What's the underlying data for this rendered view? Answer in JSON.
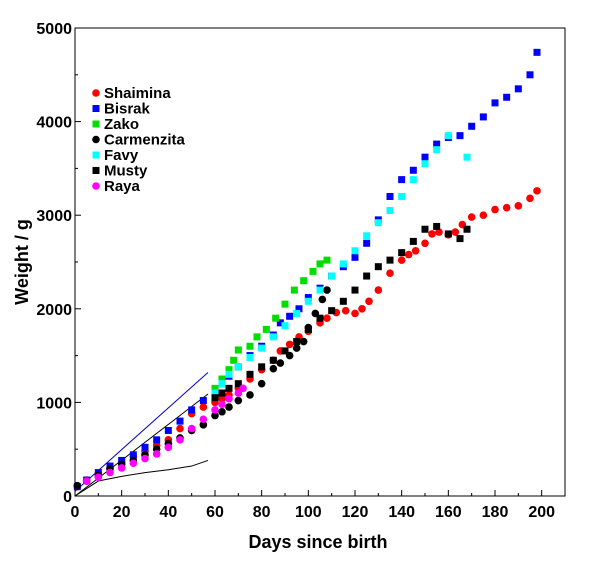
{
  "chart_data": {
    "type": "scatter",
    "title": "",
    "xlabel": "Days since birth",
    "ylabel": "Weight / g",
    "xlim": [
      0,
      210
    ],
    "ylim": [
      0,
      5000
    ],
    "x_ticks": [
      0,
      20,
      40,
      60,
      80,
      100,
      120,
      140,
      160,
      180,
      200
    ],
    "y_ticks": [
      0,
      1000,
      2000,
      3000,
      4000,
      5000
    ],
    "legend_position": "top-left",
    "grid": false,
    "series": [
      {
        "name": "Shaimina",
        "color": "#ff0000",
        "marker": "circle",
        "points": [
          [
            1,
            100
          ],
          [
            5,
            170
          ],
          [
            10,
            240
          ],
          [
            15,
            300
          ],
          [
            20,
            360
          ],
          [
            25,
            420
          ],
          [
            30,
            480
          ],
          [
            35,
            540
          ],
          [
            40,
            600
          ],
          [
            45,
            720
          ],
          [
            50,
            880
          ],
          [
            55,
            950
          ],
          [
            60,
            1000
          ],
          [
            63,
            1040
          ],
          [
            66,
            1080
          ],
          [
            70,
            1150
          ],
          [
            75,
            1250
          ],
          [
            80,
            1350
          ],
          [
            85,
            1450
          ],
          [
            88,
            1550
          ],
          [
            92,
            1620
          ],
          [
            96,
            1700
          ],
          [
            100,
            1760
          ],
          [
            105,
            1850
          ],
          [
            108,
            1900
          ],
          [
            112,
            1960
          ],
          [
            116,
            1980
          ],
          [
            120,
            1950
          ],
          [
            123,
            2000
          ],
          [
            126,
            2080
          ],
          [
            130,
            2200
          ],
          [
            135,
            2380
          ],
          [
            140,
            2520
          ],
          [
            143,
            2580
          ],
          [
            146,
            2620
          ],
          [
            150,
            2700
          ],
          [
            153,
            2800
          ],
          [
            156,
            2820
          ],
          [
            160,
            2790
          ],
          [
            163,
            2820
          ],
          [
            166,
            2900
          ],
          [
            170,
            2980
          ],
          [
            175,
            3000
          ],
          [
            180,
            3060
          ],
          [
            185,
            3080
          ],
          [
            190,
            3100
          ],
          [
            195,
            3180
          ],
          [
            198,
            3260
          ]
        ]
      },
      {
        "name": "Bisrak",
        "color": "#0000ff",
        "marker": "square",
        "points": [
          [
            1,
            100
          ],
          [
            5,
            170
          ],
          [
            10,
            250
          ],
          [
            15,
            320
          ],
          [
            20,
            380
          ],
          [
            25,
            440
          ],
          [
            30,
            520
          ],
          [
            35,
            600
          ],
          [
            40,
            700
          ],
          [
            45,
            800
          ],
          [
            50,
            920
          ],
          [
            55,
            1020
          ],
          [
            60,
            1120
          ],
          [
            63,
            1200
          ],
          [
            66,
            1280
          ],
          [
            70,
            1380
          ],
          [
            75,
            1500
          ],
          [
            80,
            1600
          ],
          [
            85,
            1720
          ],
          [
            88,
            1850
          ],
          [
            92,
            1920
          ],
          [
            96,
            2000
          ],
          [
            100,
            2120
          ],
          [
            105,
            2220
          ],
          [
            110,
            2350
          ],
          [
            115,
            2450
          ],
          [
            120,
            2550
          ],
          [
            125,
            2700
          ],
          [
            130,
            2950
          ],
          [
            135,
            3200
          ],
          [
            140,
            3380
          ],
          [
            145,
            3480
          ],
          [
            150,
            3620
          ],
          [
            155,
            3760
          ],
          [
            160,
            3830
          ],
          [
            165,
            3850
          ],
          [
            170,
            3950
          ],
          [
            175,
            4050
          ],
          [
            180,
            4200
          ],
          [
            185,
            4260
          ],
          [
            190,
            4350
          ],
          [
            195,
            4500
          ],
          [
            198,
            4740
          ]
        ]
      },
      {
        "name": "Zako",
        "color": "#00dd00",
        "marker": "square",
        "points": [
          [
            60,
            1150
          ],
          [
            63,
            1250
          ],
          [
            66,
            1350
          ],
          [
            68,
            1450
          ],
          [
            70,
            1560
          ],
          [
            75,
            1600
          ],
          [
            78,
            1700
          ],
          [
            82,
            1780
          ],
          [
            86,
            1900
          ],
          [
            90,
            2050
          ],
          [
            94,
            2200
          ],
          [
            98,
            2300
          ],
          [
            102,
            2400
          ],
          [
            105,
            2480
          ],
          [
            108,
            2520
          ]
        ]
      },
      {
        "name": "Carmenzita",
        "color": "#000000",
        "marker": "circle",
        "points": [
          [
            1,
            110
          ],
          [
            5,
            160
          ],
          [
            10,
            220
          ],
          [
            15,
            290
          ],
          [
            20,
            340
          ],
          [
            25,
            380
          ],
          [
            30,
            440
          ],
          [
            35,
            500
          ],
          [
            40,
            560
          ],
          [
            45,
            620
          ],
          [
            50,
            700
          ],
          [
            55,
            760
          ],
          [
            60,
            860
          ],
          [
            63,
            900
          ],
          [
            66,
            950
          ],
          [
            70,
            1020
          ],
          [
            75,
            1080
          ],
          [
            80,
            1200
          ],
          [
            85,
            1360
          ],
          [
            88,
            1420
          ],
          [
            92,
            1500
          ],
          [
            95,
            1580
          ],
          [
            98,
            1650
          ],
          [
            100,
            1800
          ],
          [
            103,
            1950
          ],
          [
            106,
            2100
          ],
          [
            108,
            2200
          ]
        ]
      },
      {
        "name": "Favy",
        "color": "#00ffff",
        "marker": "square",
        "points": [
          [
            60,
            1100
          ],
          [
            63,
            1200
          ],
          [
            66,
            1300
          ],
          [
            70,
            1380
          ],
          [
            75,
            1480
          ],
          [
            80,
            1580
          ],
          [
            85,
            1700
          ],
          [
            90,
            1820
          ],
          [
            95,
            1950
          ],
          [
            100,
            2080
          ],
          [
            105,
            2200
          ],
          [
            110,
            2350
          ],
          [
            115,
            2480
          ],
          [
            120,
            2620
          ],
          [
            125,
            2780
          ],
          [
            130,
            2920
          ],
          [
            135,
            3050
          ],
          [
            140,
            3200
          ],
          [
            145,
            3380
          ],
          [
            150,
            3550
          ],
          [
            155,
            3700
          ],
          [
            160,
            3850
          ],
          [
            168,
            3620
          ]
        ]
      },
      {
        "name": "Musty",
        "color": "#000000",
        "marker": "square",
        "points": [
          [
            60,
            1050
          ],
          [
            63,
            1100
          ],
          [
            66,
            1150
          ],
          [
            70,
            1200
          ],
          [
            75,
            1300
          ],
          [
            80,
            1380
          ],
          [
            85,
            1450
          ],
          [
            90,
            1550
          ],
          [
            95,
            1650
          ],
          [
            100,
            1780
          ],
          [
            105,
            1900
          ],
          [
            110,
            1980
          ],
          [
            115,
            2080
          ],
          [
            120,
            2200
          ],
          [
            125,
            2350
          ],
          [
            130,
            2450
          ],
          [
            135,
            2520
          ],
          [
            140,
            2600
          ],
          [
            145,
            2720
          ],
          [
            150,
            2850
          ],
          [
            155,
            2880
          ],
          [
            160,
            2800
          ],
          [
            165,
            2750
          ],
          [
            168,
            2850
          ]
        ]
      },
      {
        "name": "Raya",
        "color": "#ff00ff",
        "marker": "circle",
        "points": [
          [
            5,
            160
          ],
          [
            10,
            200
          ],
          [
            15,
            250
          ],
          [
            20,
            300
          ],
          [
            25,
            350
          ],
          [
            30,
            400
          ],
          [
            35,
            450
          ],
          [
            40,
            520
          ],
          [
            45,
            600
          ],
          [
            50,
            720
          ],
          [
            55,
            820
          ],
          [
            60,
            920
          ],
          [
            63,
            980
          ],
          [
            66,
            1040
          ],
          [
            70,
            1100
          ],
          [
            72,
            1150
          ]
        ]
      }
    ],
    "reference_lines": [
      {
        "color": "#0000cc",
        "points": [
          [
            0,
            50
          ],
          [
            57,
            1320
          ]
        ]
      },
      {
        "color": "#000000",
        "points": [
          [
            0,
            0
          ],
          [
            57,
            1090
          ]
        ]
      },
      {
        "color": "#000000",
        "points": [
          [
            0,
            0
          ],
          [
            10,
            160
          ],
          [
            20,
            210
          ],
          [
            30,
            250
          ],
          [
            40,
            280
          ],
          [
            50,
            320
          ],
          [
            57,
            380
          ]
        ]
      }
    ]
  }
}
